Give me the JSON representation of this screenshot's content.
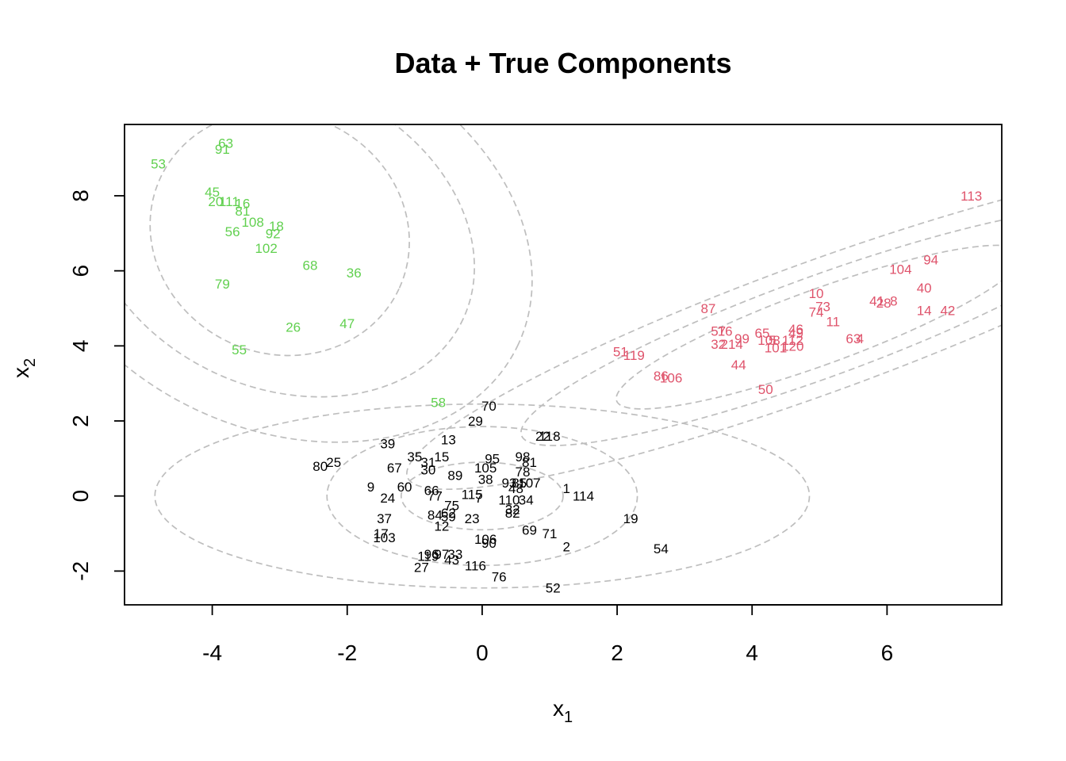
{
  "chart_data": {
    "type": "scatter",
    "title": "Data + True Components",
    "xlabel": "x",
    "xlabel_subscript": "1",
    "ylabel": "x",
    "ylabel_subscript": "2",
    "xlim": [
      -5.3,
      7.7
    ],
    "ylim": [
      -2.9,
      9.9
    ],
    "xticks": [
      "-4",
      "-2",
      "0",
      "2",
      "4",
      "6"
    ],
    "yticks": [
      "-2",
      "0",
      "2",
      "4",
      "6",
      "8"
    ],
    "grid": false,
    "colors": {
      "black": "#000000",
      "red": "#DF536B",
      "green": "#61D04F",
      "contour": "#BEBEBE"
    },
    "series": [
      {
        "color": "#000000",
        "points": [
          {
            "label": "70",
            "x": 0.1,
            "y": 2.4
          },
          {
            "label": "29",
            "x": -0.1,
            "y": 2.0
          },
          {
            "label": "118",
            "x": 1.0,
            "y": 1.6
          },
          {
            "label": "22",
            "x": 0.9,
            "y": 1.6
          },
          {
            "label": "13",
            "x": -0.5,
            "y": 1.5
          },
          {
            "label": "39",
            "x": -1.4,
            "y": 1.4
          },
          {
            "label": "98",
            "x": 0.6,
            "y": 1.05
          },
          {
            "label": "95",
            "x": 0.15,
            "y": 1.0
          },
          {
            "label": "35",
            "x": -1.0,
            "y": 1.05
          },
          {
            "label": "15",
            "x": -0.6,
            "y": 1.05
          },
          {
            "label": "31",
            "x": -0.8,
            "y": 0.9
          },
          {
            "label": "81",
            "x": 0.7,
            "y": 0.9
          },
          {
            "label": "105",
            "x": 0.05,
            "y": 0.75
          },
          {
            "label": "67",
            "x": -1.3,
            "y": 0.75
          },
          {
            "label": "30",
            "x": -0.8,
            "y": 0.7
          },
          {
            "label": "78",
            "x": 0.6,
            "y": 0.65
          },
          {
            "label": "89",
            "x": -0.4,
            "y": 0.55
          },
          {
            "label": "38",
            "x": 0.05,
            "y": 0.45
          },
          {
            "label": "80",
            "x": -2.4,
            "y": 0.8
          },
          {
            "label": "25",
            "x": -2.2,
            "y": 0.9
          },
          {
            "label": "9",
            "x": -1.65,
            "y": 0.25
          },
          {
            "label": "60",
            "x": -1.15,
            "y": 0.25
          },
          {
            "label": "93",
            "x": 0.4,
            "y": 0.35
          },
          {
            "label": "85",
            "x": 0.55,
            "y": 0.35
          },
          {
            "label": "107",
            "x": 0.7,
            "y": 0.35
          },
          {
            "label": "48",
            "x": 0.5,
            "y": 0.2
          },
          {
            "label": "66",
            "x": -0.75,
            "y": 0.15
          },
          {
            "label": "1",
            "x": 1.25,
            "y": 0.2
          },
          {
            "label": "24",
            "x": -1.4,
            "y": -0.05
          },
          {
            "label": "77",
            "x": -0.7,
            "y": 0.0
          },
          {
            "label": "115",
            "x": -0.15,
            "y": 0.05
          },
          {
            "label": "7",
            "x": -0.05,
            "y": -0.05
          },
          {
            "label": "110",
            "x": 0.4,
            "y": -0.1
          },
          {
            "label": "34",
            "x": 0.65,
            "y": -0.1
          },
          {
            "label": "114",
            "x": 1.5,
            "y": 0.0
          },
          {
            "label": "75",
            "x": -0.45,
            "y": -0.25
          },
          {
            "label": "32",
            "x": 0.45,
            "y": -0.35
          },
          {
            "label": "82",
            "x": 0.45,
            "y": -0.45
          },
          {
            "label": "84",
            "x": -0.7,
            "y": -0.5
          },
          {
            "label": "62",
            "x": -0.5,
            "y": -0.45
          },
          {
            "label": "59",
            "x": -0.5,
            "y": -0.55
          },
          {
            "label": "23",
            "x": -0.15,
            "y": -0.6
          },
          {
            "label": "19",
            "x": 2.2,
            "y": -0.6
          },
          {
            "label": "37",
            "x": -1.45,
            "y": -0.6
          },
          {
            "label": "12",
            "x": -0.6,
            "y": -0.8
          },
          {
            "label": "69",
            "x": 0.7,
            "y": -0.9
          },
          {
            "label": "71",
            "x": 1.0,
            "y": -1.0
          },
          {
            "label": "17",
            "x": -1.5,
            "y": -1.0
          },
          {
            "label": "103",
            "x": -1.45,
            "y": -1.1
          },
          {
            "label": "106",
            "x": 0.05,
            "y": -1.15
          },
          {
            "label": "90",
            "x": 0.1,
            "y": -1.25
          },
          {
            "label": "2",
            "x": 1.25,
            "y": -1.35
          },
          {
            "label": "54",
            "x": 2.65,
            "y": -1.4
          },
          {
            "label": "119",
            "x": -0.8,
            "y": -1.6
          },
          {
            "label": "96",
            "x": -0.75,
            "y": -1.55
          },
          {
            "label": "97",
            "x": -0.6,
            "y": -1.55
          },
          {
            "label": "33",
            "x": -0.4,
            "y": -1.55
          },
          {
            "label": "43",
            "x": -0.45,
            "y": -1.7
          },
          {
            "label": "116",
            "x": -0.1,
            "y": -1.85
          },
          {
            "label": "27",
            "x": -0.9,
            "y": -1.9
          },
          {
            "label": "76",
            "x": 0.25,
            "y": -2.15
          },
          {
            "label": "52",
            "x": 1.05,
            "y": -2.45
          }
        ]
      },
      {
        "color": "#DF536B",
        "points": [
          {
            "label": "113",
            "x": 7.25,
            "y": 8.0
          },
          {
            "label": "94",
            "x": 6.65,
            "y": 6.3
          },
          {
            "label": "104",
            "x": 6.2,
            "y": 6.05
          },
          {
            "label": "40",
            "x": 6.55,
            "y": 5.55
          },
          {
            "label": "10",
            "x": 4.95,
            "y": 5.4
          },
          {
            "label": "41",
            "x": 5.85,
            "y": 5.2
          },
          {
            "label": "28",
            "x": 5.95,
            "y": 5.15
          },
          {
            "label": "8",
            "x": 6.1,
            "y": 5.2
          },
          {
            "label": "73",
            "x": 5.05,
            "y": 5.05
          },
          {
            "label": "87",
            "x": 3.35,
            "y": 5.0
          },
          {
            "label": "14",
            "x": 6.55,
            "y": 4.95
          },
          {
            "label": "42",
            "x": 6.9,
            "y": 4.95
          },
          {
            "label": "74",
            "x": 4.95,
            "y": 4.9
          },
          {
            "label": "11",
            "x": 5.2,
            "y": 4.65
          },
          {
            "label": "57",
            "x": 3.5,
            "y": 4.4
          },
          {
            "label": "16",
            "x": 3.6,
            "y": 4.4
          },
          {
            "label": "46",
            "x": 4.65,
            "y": 4.45
          },
          {
            "label": "65",
            "x": 4.15,
            "y": 4.35
          },
          {
            "label": "49",
            "x": 4.65,
            "y": 4.35
          },
          {
            "label": "99",
            "x": 3.85,
            "y": 4.2
          },
          {
            "label": "108",
            "x": 4.25,
            "y": 4.15
          },
          {
            "label": "5",
            "x": 4.3,
            "y": 4.15
          },
          {
            "label": "112",
            "x": 4.6,
            "y": 4.15
          },
          {
            "label": "63",
            "x": 5.5,
            "y": 4.2
          },
          {
            "label": "4",
            "x": 5.6,
            "y": 4.2
          },
          {
            "label": "32",
            "x": 3.5,
            "y": 4.05
          },
          {
            "label": "214",
            "x": 3.7,
            "y": 4.05
          },
          {
            "label": "101",
            "x": 4.35,
            "y": 3.95
          },
          {
            "label": "120",
            "x": 4.6,
            "y": 4.0
          },
          {
            "label": "51",
            "x": 2.05,
            "y": 3.85
          },
          {
            "label": "119",
            "x": 2.25,
            "y": 3.75
          },
          {
            "label": "44",
            "x": 3.8,
            "y": 3.5
          },
          {
            "label": "86",
            "x": 2.65,
            "y": 3.2
          },
          {
            "label": "106",
            "x": 2.8,
            "y": 3.15
          },
          {
            "label": "50",
            "x": 4.2,
            "y": 2.85
          }
        ]
      },
      {
        "color": "#61D04F",
        "points": [
          {
            "label": "63",
            "x": -3.8,
            "y": 9.4
          },
          {
            "label": "91",
            "x": -3.85,
            "y": 9.25
          },
          {
            "label": "53",
            "x": -4.8,
            "y": 8.85
          },
          {
            "label": "45",
            "x": -4.0,
            "y": 8.1
          },
          {
            "label": "111",
            "x": -3.75,
            "y": 7.85
          },
          {
            "label": "16",
            "x": -3.55,
            "y": 7.8
          },
          {
            "label": "20",
            "x": -3.95,
            "y": 7.85
          },
          {
            "label": "81",
            "x": -3.55,
            "y": 7.6
          },
          {
            "label": "108",
            "x": -3.4,
            "y": 7.3
          },
          {
            "label": "18",
            "x": -3.05,
            "y": 7.2
          },
          {
            "label": "56",
            "x": -3.7,
            "y": 7.05
          },
          {
            "label": "92",
            "x": -3.1,
            "y": 7.0
          },
          {
            "label": "102",
            "x": -3.2,
            "y": 6.6
          },
          {
            "label": "68",
            "x": -2.55,
            "y": 6.15
          },
          {
            "label": "36",
            "x": -1.9,
            "y": 5.95
          },
          {
            "label": "79",
            "x": -3.85,
            "y": 5.65
          },
          {
            "label": "26",
            "x": -2.8,
            "y": 4.5
          },
          {
            "label": "47",
            "x": -2.0,
            "y": 4.6
          },
          {
            "label": "55",
            "x": -3.6,
            "y": 3.9
          },
          {
            "label": "58",
            "x": -0.65,
            "y": 2.5
          }
        ]
      }
    ],
    "components": [
      {
        "color": "#BEBEBE",
        "center": [
          0.0,
          0.0
        ],
        "ellipses": [
          [
            1.2,
            0.9,
            0
          ],
          [
            2.3,
            1.85,
            0
          ],
          [
            4.85,
            2.45,
            0
          ]
        ]
      },
      {
        "color": "#BEBEBE",
        "center": [
          5.0,
          4.5
        ],
        "ellipses": [
          [
            3.2,
            1.0,
            20
          ],
          [
            4.7,
            1.35,
            20
          ],
          [
            6.5,
            1.75,
            20
          ]
        ]
      },
      {
        "color": "#BEBEBE",
        "center": [
          -3.0,
          7.0
        ],
        "ellipses": [
          [
            1.95,
            3.2,
            -25
          ],
          [
            3.0,
            4.1,
            -25
          ],
          [
            3.9,
            5.2,
            -25
          ]
        ]
      }
    ]
  }
}
